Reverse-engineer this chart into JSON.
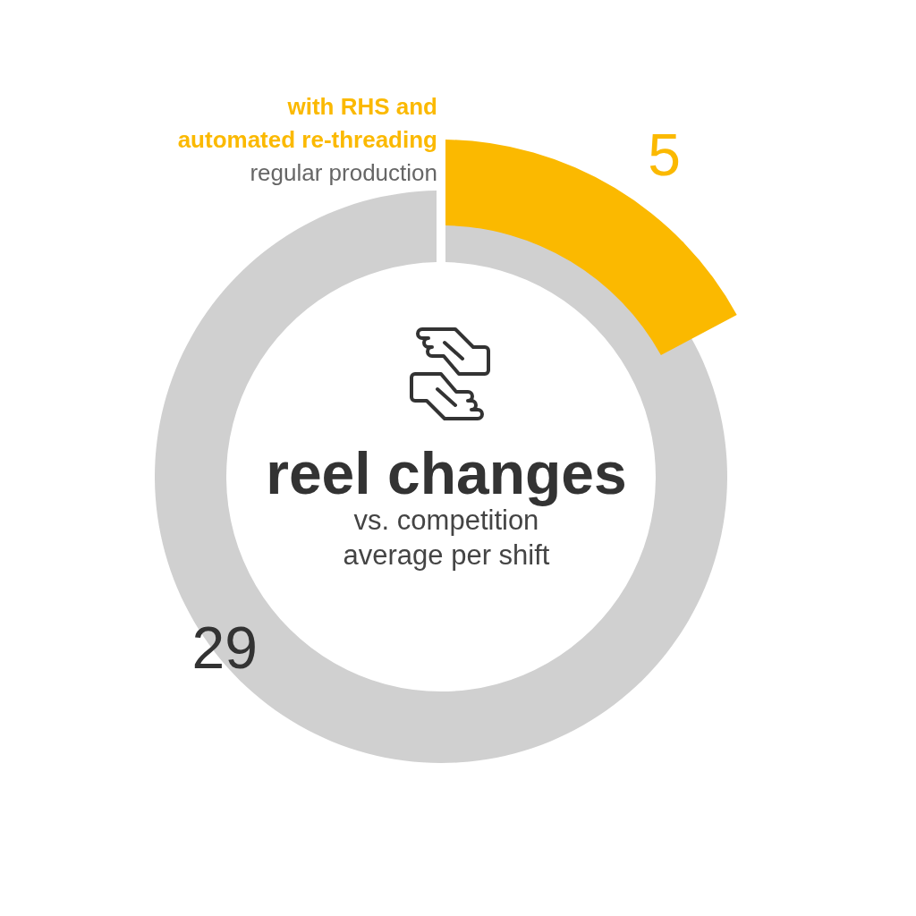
{
  "chart_data": {
    "type": "other",
    "title": "reel changes",
    "subtitle": "vs. competition\naverage per shift",
    "categories": [
      "with RHS and\nautomated re-threading",
      "regular production"
    ],
    "values": [
      5,
      29
    ],
    "colors": [
      "#fbb900",
      "#d0d0d0"
    ],
    "data_labels": true
  }
}
